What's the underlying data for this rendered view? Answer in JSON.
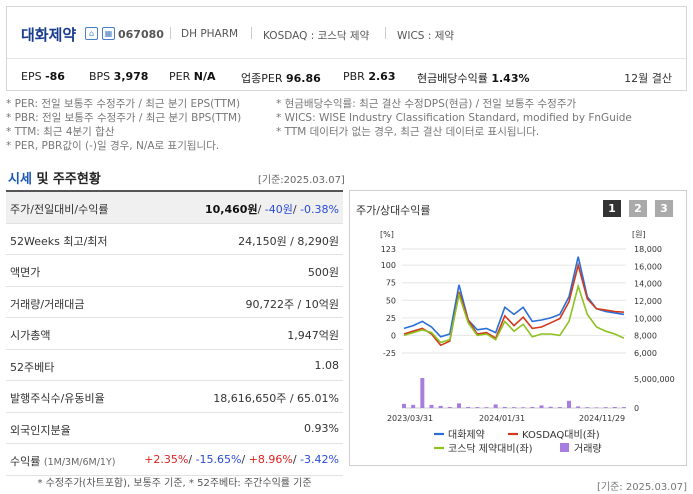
{
  "company": {
    "name": "대화제약",
    "code": "067080",
    "english_name": "DH PHARM",
    "market": "KOSDAQ : 코스닥 제약",
    "wics": "WICS : 제약",
    "icon1": "home-icon",
    "icon2": "building-icon"
  },
  "metrics": {
    "eps_label": "EPS",
    "eps_value": "-86",
    "bps_label": "BPS",
    "bps_value": "3,978",
    "per_label": "PER",
    "per_value": "N/A",
    "sector_per_label": "업종PER",
    "sector_per_value": "96.86",
    "pbr_label": "PBR",
    "pbr_value": "2.63",
    "dividend_label": "현금배당수익률",
    "dividend_value": "1.43%",
    "settlement": "12월 결산"
  },
  "notes": {
    "per": "* PER: 전일 보통주 수정주가 / 최근 분기 EPS(TTM)",
    "pbr": "* PBR: 전일 보통주 수정주가 / 최근 분기 BPS(TTM)",
    "ttm": "* TTM: 최근 4분기 합산",
    "neg": "* PER, PBR값이 (-)일 경우, N/A로 표기됩니다.",
    "div": "* 현금배당수익률: 최근 결산 수정DPS(현금) / 전일 보통주 수정주가",
    "wics": "* WICS: WISE Industry Classification Standard, modified by FnGuide",
    "ttm2": "* TTM 데이터가 없는 경우, 최근 결산 데이터로 표시됩니다."
  },
  "section": {
    "title_blue": "시세",
    "title_rest": " 및 주주현황",
    "base_date": "[기준:2025.03.07]"
  },
  "table": {
    "price_label": "주가/전일대비/수익률",
    "price_value": "10,460원",
    "price_change": "-40원",
    "price_rate": "-0.38%",
    "rows": [
      {
        "label": "52Weeks 최고/최저",
        "value": "24,150원 / 8,290원"
      },
      {
        "label": "액면가",
        "value": "500원"
      },
      {
        "label": "거래량/거래대금",
        "value": "90,722주 / 10억원"
      },
      {
        "label": "시가총액",
        "value": "1,947억원"
      },
      {
        "label": "52주베타",
        "value": "1.08"
      },
      {
        "label": "발행주식수/유동비율",
        "value": "18,616,650주 / 65.01%"
      },
      {
        "label": "외국인지분율",
        "value": "0.93%"
      }
    ],
    "return_label": "수익률",
    "return_sub": "(1M/3M/6M/1Y)",
    "returns": [
      "+2.35%",
      "-15.65%",
      "+8.96%",
      "-3.42%"
    ],
    "footnote": "* 수정주가(차트포함), 보통주 기준, * 52주베타: 주간수익률 기준"
  },
  "chart_panel": {
    "title": "주가/상대수익률",
    "pages": [
      "1",
      "2",
      "3"
    ],
    "base_date": "[기준: 2025.03.07]"
  },
  "chart_data": {
    "type": "line",
    "left_unit": "[%]",
    "right_unit": "[원]",
    "y_left_ticks": [
      "123",
      "100",
      "75",
      "50",
      "25",
      "0",
      "-25"
    ],
    "y_right_ticks": [
      "18,000",
      "16,000",
      "14,000",
      "12,000",
      "10,000",
      "8,000",
      "6,000"
    ],
    "vol_ticks": [
      "5,000,000",
      "0"
    ],
    "x_ticks": [
      "2023/03/31",
      "2024/01/31",
      "2024/11/29"
    ],
    "ylim_left": [
      -25,
      123
    ],
    "series": [
      {
        "name": "대화제약",
        "color": "#2a6fd6",
        "values": [
          10,
          14,
          20,
          12,
          -2,
          2,
          72,
          22,
          8,
          10,
          4,
          40,
          30,
          40,
          20,
          22,
          25,
          30,
          55,
          112,
          55,
          38,
          34,
          32,
          30
        ]
      },
      {
        "name": "KOSDAQ대비(좌)",
        "color": "#d23a1e",
        "values": [
          2,
          6,
          10,
          2,
          -14,
          -8,
          62,
          22,
          2,
          4,
          -4,
          28,
          14,
          26,
          10,
          12,
          18,
          24,
          48,
          100,
          52,
          38,
          36,
          34,
          33
        ]
      },
      {
        "name": "코스닥 제약대비(좌)",
        "color": "#8dc21f",
        "values": [
          0,
          4,
          8,
          4,
          -10,
          -6,
          58,
          18,
          0,
          2,
          -6,
          20,
          6,
          16,
          -2,
          2,
          2,
          0,
          20,
          70,
          30,
          12,
          6,
          2,
          -4
        ]
      },
      {
        "name": "거래량",
        "color": "#a87de0",
        "values": [
          400000,
          300000,
          2900000,
          300000,
          200000,
          100000,
          450000,
          100000,
          90000,
          80000,
          350000,
          100000,
          80000,
          70000,
          100000,
          250000,
          120000,
          90000,
          700000,
          150000,
          80000,
          60000,
          80000,
          100000,
          90000
        ]
      }
    ],
    "legend": [
      "대화제약",
      "KOSDAQ대비(좌)",
      "코스닥 제약대비(좌)",
      "거래량"
    ],
    "grid": true
  }
}
